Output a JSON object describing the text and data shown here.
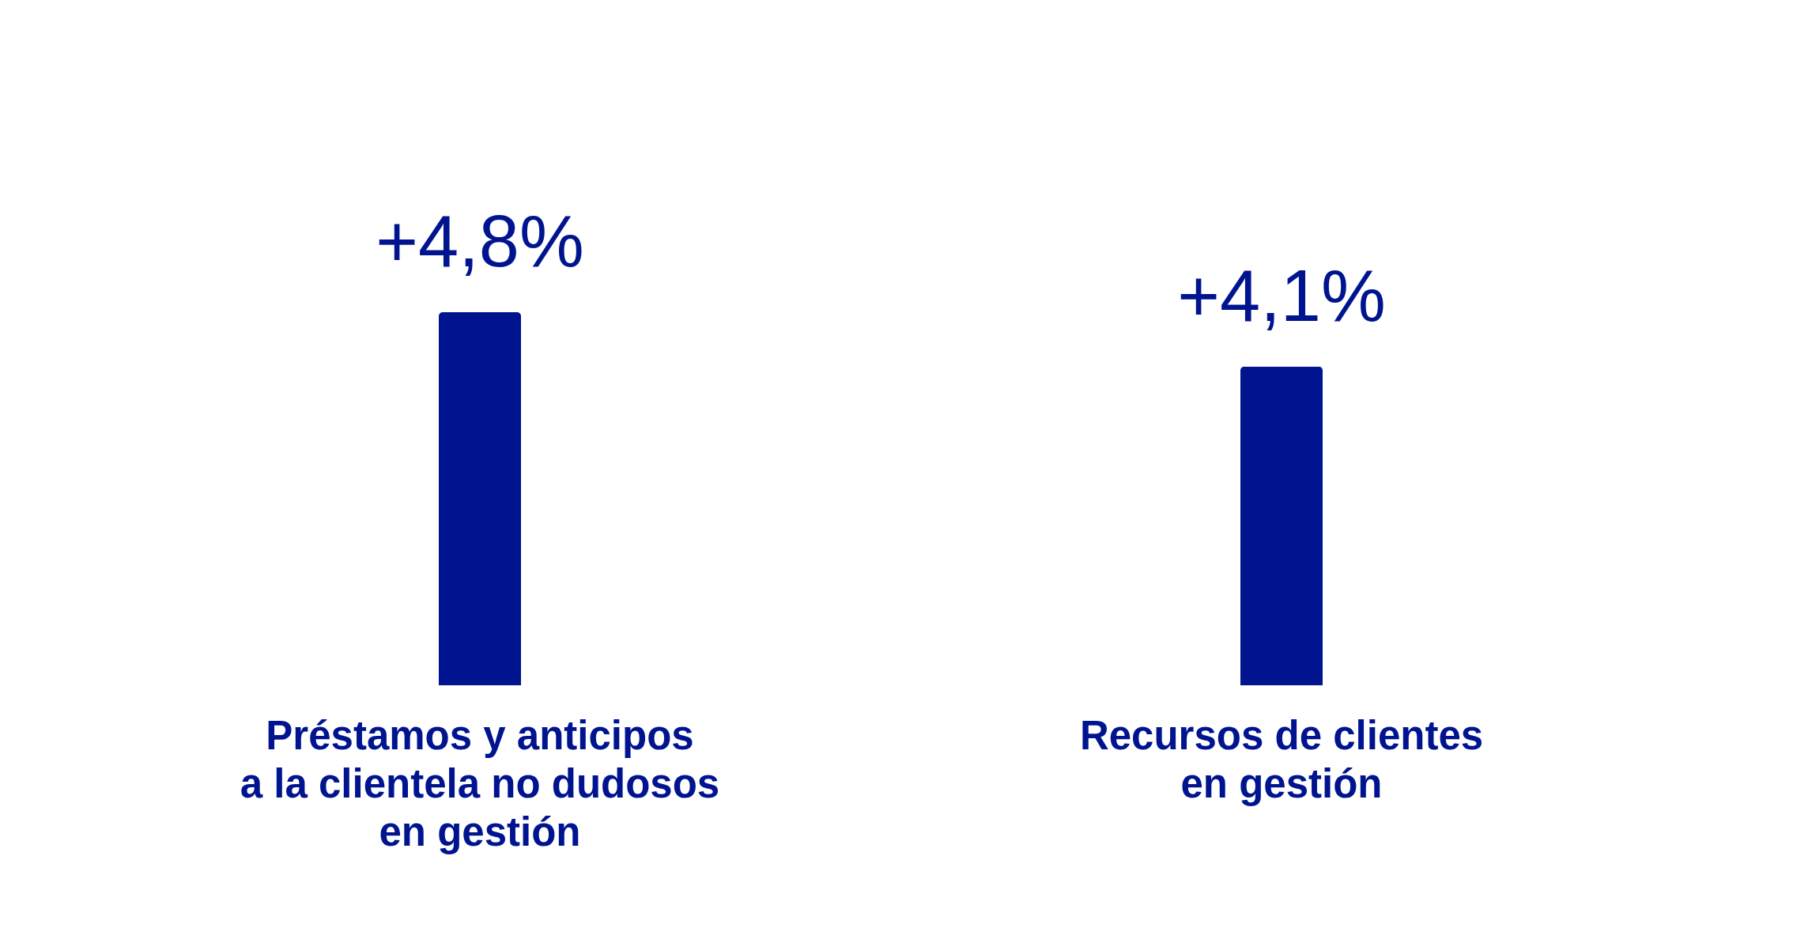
{
  "chart_data": {
    "type": "bar",
    "categories": [
      "Préstamos y anticipos\na la clientela no dudosos\nen gestión",
      "Recursos de clientes\nen gestión"
    ],
    "values": [
      4.8,
      4.1
    ],
    "color": "#00148f",
    "value_labels": [
      "+4,8%",
      "+4,1%"
    ]
  }
}
